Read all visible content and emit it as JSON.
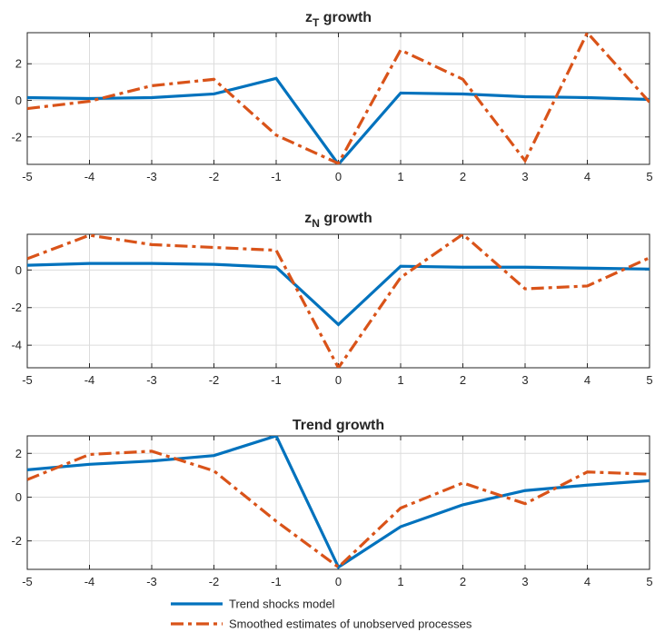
{
  "chart_data": [
    {
      "type": "line",
      "title": "z_T growth",
      "title_parts": {
        "base": "z",
        "sub": "T",
        "rest": " growth"
      },
      "x": [
        -5,
        -4,
        -3,
        -2,
        -1,
        0,
        1,
        2,
        3,
        4,
        5
      ],
      "xlim": [
        -5,
        5
      ],
      "ylim": [
        -3.5,
        3.7
      ],
      "yticks": [
        -2,
        0,
        2
      ],
      "grid": true,
      "series": [
        {
          "name": "Trend shocks model",
          "style": "solid",
          "values": [
            0.15,
            0.1,
            0.15,
            0.35,
            1.2,
            -3.5,
            0.4,
            0.35,
            0.2,
            0.15,
            0.05
          ]
        },
        {
          "name": "Smoothed estimates of unobserved processes",
          "style": "dashdot",
          "values": [
            -0.45,
            -0.05,
            0.8,
            1.15,
            -1.9,
            -3.45,
            2.75,
            1.15,
            -3.3,
            3.7,
            -0.1
          ]
        }
      ]
    },
    {
      "type": "line",
      "title": "z_N growth",
      "title_parts": {
        "base": "z",
        "sub": "N",
        "rest": " growth"
      },
      "x": [
        -5,
        -4,
        -3,
        -2,
        -1,
        0,
        1,
        2,
        3,
        4,
        5
      ],
      "xlim": [
        -5,
        5
      ],
      "ylim": [
        -5.2,
        1.9
      ],
      "yticks": [
        -4,
        -2,
        0
      ],
      "grid": true,
      "series": [
        {
          "name": "Trend shocks model",
          "style": "solid",
          "values": [
            0.25,
            0.35,
            0.35,
            0.3,
            0.15,
            -2.9,
            0.2,
            0.15,
            0.15,
            0.1,
            0.05
          ]
        },
        {
          "name": "Smoothed estimates of unobserved processes",
          "style": "dashdot",
          "values": [
            0.6,
            1.85,
            1.35,
            1.2,
            1.05,
            -5.2,
            -0.4,
            1.9,
            -1.0,
            -0.85,
            0.65
          ]
        }
      ]
    },
    {
      "type": "line",
      "title": "Trend growth",
      "x": [
        -5,
        -4,
        -3,
        -2,
        -1,
        0,
        1,
        2,
        3,
        4,
        5
      ],
      "xlim": [
        -5,
        5
      ],
      "ylim": [
        -3.3,
        2.8
      ],
      "yticks": [
        -2,
        0,
        2
      ],
      "grid": true,
      "series": [
        {
          "name": "Trend shocks model",
          "style": "solid",
          "values": [
            1.25,
            1.5,
            1.65,
            1.9,
            2.8,
            -3.2,
            -1.35,
            -0.35,
            0.3,
            0.55,
            0.75
          ]
        },
        {
          "name": "Smoothed estimates of unobserved processes",
          "style": "dashdot",
          "values": [
            0.8,
            1.95,
            2.1,
            1.2,
            -1.1,
            -3.2,
            -0.5,
            0.65,
            -0.3,
            1.15,
            1.05
          ]
        }
      ]
    }
  ],
  "legend": {
    "placement": "bottom",
    "entries": [
      {
        "label": "Trend shocks model",
        "style": "solid"
      },
      {
        "label": "Smoothed estimates of unobserved processes",
        "style": "dashdot"
      }
    ]
  },
  "colors": {
    "series_1": "#0072BD",
    "series_2": "#D95319",
    "grid": "#dcdcdc",
    "axis": "#262626"
  }
}
